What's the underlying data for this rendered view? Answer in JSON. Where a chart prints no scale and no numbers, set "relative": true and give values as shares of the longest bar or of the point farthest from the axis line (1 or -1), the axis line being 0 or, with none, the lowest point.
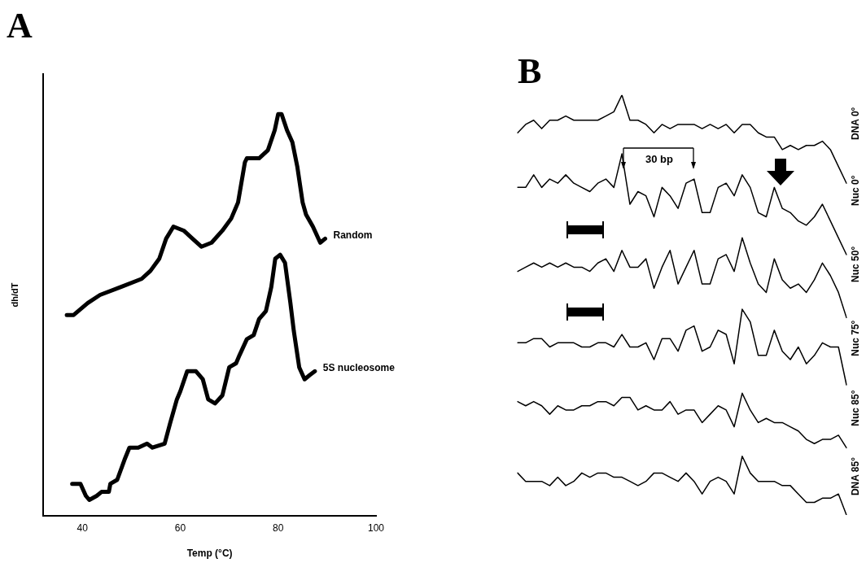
{
  "chart_data": [
    {
      "type": "line",
      "title": "A",
      "xlabel": "Temp (°C)",
      "ylabel": "dh/dT",
      "relative": true,
      "xlim": [
        32,
        100
      ],
      "xticks": [
        40,
        60,
        80,
        100
      ],
      "series": [
        {
          "name": "Random",
          "color": "#000000",
          "x": [
            36.8,
            38.2,
            41.1,
            43.6,
            47.9,
            52.1,
            53.9,
            55.7,
            57.1,
            58.6,
            60.7,
            62.5,
            64.3,
            66.4,
            68.6,
            70.4,
            71.8,
            73.2,
            73.6,
            74.6,
            76.1,
            77.9,
            79.3,
            80.0,
            80.7,
            81.8,
            82.9,
            83.9,
            85.0,
            85.7,
            87.1,
            88.6,
            89.6
          ],
          "values": [
            0.5,
            0.5,
            0.53,
            0.55,
            0.57,
            0.59,
            0.61,
            0.64,
            0.69,
            0.72,
            0.71,
            0.69,
            0.67,
            0.68,
            0.71,
            0.74,
            0.78,
            0.88,
            0.89,
            0.89,
            0.89,
            0.91,
            0.96,
            1.0,
            1.0,
            0.96,
            0.93,
            0.87,
            0.78,
            0.75,
            0.72,
            0.68,
            0.69
          ]
        },
        {
          "name": "5S nucleosome",
          "color": "#000000",
          "x": [
            37.9,
            39.6,
            40.7,
            41.4,
            42.9,
            43.9,
            45.4,
            45.7,
            47.1,
            48.6,
            49.6,
            51.4,
            53.2,
            54.3,
            56.8,
            57.9,
            59.3,
            60.0,
            61.4,
            63.2,
            64.6,
            65.7,
            67.1,
            68.6,
            70.0,
            71.4,
            72.1,
            73.6,
            75.0,
            76.1,
            77.5,
            78.6,
            79.4,
            80.4,
            81.4,
            82.5,
            83.2,
            84.3,
            85.4,
            86.4,
            87.5
          ],
          "values": [
            0.08,
            0.08,
            0.05,
            0.04,
            0.05,
            0.06,
            0.06,
            0.08,
            0.09,
            0.14,
            0.17,
            0.17,
            0.18,
            0.17,
            0.18,
            0.23,
            0.29,
            0.31,
            0.36,
            0.36,
            0.34,
            0.29,
            0.28,
            0.3,
            0.37,
            0.38,
            0.4,
            0.44,
            0.45,
            0.49,
            0.51,
            0.57,
            0.64,
            0.65,
            0.63,
            0.53,
            0.46,
            0.37,
            0.34,
            0.35,
            0.36
          ]
        }
      ]
    },
    {
      "type": "line",
      "title": "B",
      "relative": true,
      "annotations": [
        "30 bp"
      ],
      "categories": [
        null,
        null,
        null,
        null,
        null,
        null,
        null,
        null,
        null,
        null,
        null,
        null,
        null,
        null,
        null,
        null,
        null,
        null,
        null,
        null,
        null,
        null,
        null,
        null,
        null,
        null,
        null,
        null,
        null,
        null,
        null,
        null,
        null,
        null,
        null,
        null,
        null,
        null,
        null,
        null,
        null,
        null
      ],
      "series": [
        {
          "name": "DNA 0°",
          "color": "#000000",
          "values": [
            0.91,
            0.93,
            0.94,
            0.92,
            0.94,
            0.94,
            0.95,
            0.94,
            0.94,
            0.94,
            0.94,
            0.95,
            0.96,
            1.0,
            0.94,
            0.94,
            0.93,
            0.91,
            0.93,
            0.92,
            0.93,
            0.93,
            0.93,
            0.92,
            0.93,
            0.92,
            0.93,
            0.91,
            0.93,
            0.93,
            0.91,
            0.9,
            0.9,
            0.87,
            0.88,
            0.87,
            0.88,
            0.88,
            0.89,
            0.87,
            0.83,
            0.79
          ]
        },
        {
          "name": "Nuc 0°",
          "color": "#000000",
          "values": [
            0.78,
            0.78,
            0.81,
            0.78,
            0.8,
            0.79,
            0.81,
            0.79,
            0.78,
            0.77,
            0.79,
            0.8,
            0.78,
            0.86,
            0.74,
            0.77,
            0.76,
            0.71,
            0.78,
            0.76,
            0.73,
            0.79,
            0.8,
            0.72,
            0.72,
            0.78,
            0.79,
            0.76,
            0.81,
            0.78,
            0.72,
            0.71,
            0.78,
            0.73,
            0.72,
            0.7,
            0.69,
            0.71,
            0.74,
            0.7,
            0.66,
            0.62
          ]
        },
        {
          "name": "Nuc 50°",
          "color": "#000000",
          "values": [
            0.58,
            0.59,
            0.6,
            0.59,
            0.6,
            0.59,
            0.6,
            0.59,
            0.59,
            0.58,
            0.6,
            0.61,
            0.58,
            0.63,
            0.59,
            0.59,
            0.61,
            0.54,
            0.59,
            0.63,
            0.55,
            0.59,
            0.63,
            0.55,
            0.55,
            0.61,
            0.62,
            0.58,
            0.66,
            0.6,
            0.55,
            0.53,
            0.61,
            0.56,
            0.54,
            0.55,
            0.53,
            0.56,
            0.6,
            0.57,
            0.53,
            0.47
          ]
        },
        {
          "name": "Nuc 75°",
          "color": "#000000",
          "values": [
            0.41,
            0.41,
            0.42,
            0.42,
            0.4,
            0.41,
            0.41,
            0.41,
            0.4,
            0.4,
            0.41,
            0.41,
            0.4,
            0.43,
            0.4,
            0.4,
            0.41,
            0.37,
            0.42,
            0.42,
            0.39,
            0.44,
            0.45,
            0.39,
            0.4,
            0.44,
            0.43,
            0.36,
            0.49,
            0.46,
            0.38,
            0.38,
            0.44,
            0.39,
            0.37,
            0.4,
            0.36,
            0.38,
            0.41,
            0.4,
            0.4,
            0.31
          ]
        },
        {
          "name": "Nuc 85°",
          "color": "#000000",
          "values": [
            0.27,
            0.26,
            0.27,
            0.26,
            0.24,
            0.26,
            0.25,
            0.25,
            0.26,
            0.26,
            0.27,
            0.27,
            0.26,
            0.28,
            0.28,
            0.25,
            0.26,
            0.25,
            0.25,
            0.27,
            0.24,
            0.25,
            0.25,
            0.22,
            0.24,
            0.26,
            0.25,
            0.21,
            0.29,
            0.25,
            0.22,
            0.23,
            0.22,
            0.22,
            0.21,
            0.2,
            0.18,
            0.17,
            0.18,
            0.18,
            0.19,
            0.16
          ]
        },
        {
          "name": "DNA 85°",
          "color": "#000000",
          "values": [
            0.1,
            0.08,
            0.08,
            0.08,
            0.07,
            0.09,
            0.07,
            0.08,
            0.1,
            0.09,
            0.1,
            0.1,
            0.09,
            0.09,
            0.08,
            0.07,
            0.08,
            0.1,
            0.1,
            0.09,
            0.08,
            0.1,
            0.08,
            0.05,
            0.08,
            0.09,
            0.08,
            0.05,
            0.14,
            0.1,
            0.08,
            0.08,
            0.08,
            0.07,
            0.07,
            0.05,
            0.03,
            0.03,
            0.04,
            0.04,
            0.05,
            0.0
          ]
        }
      ]
    }
  ]
}
